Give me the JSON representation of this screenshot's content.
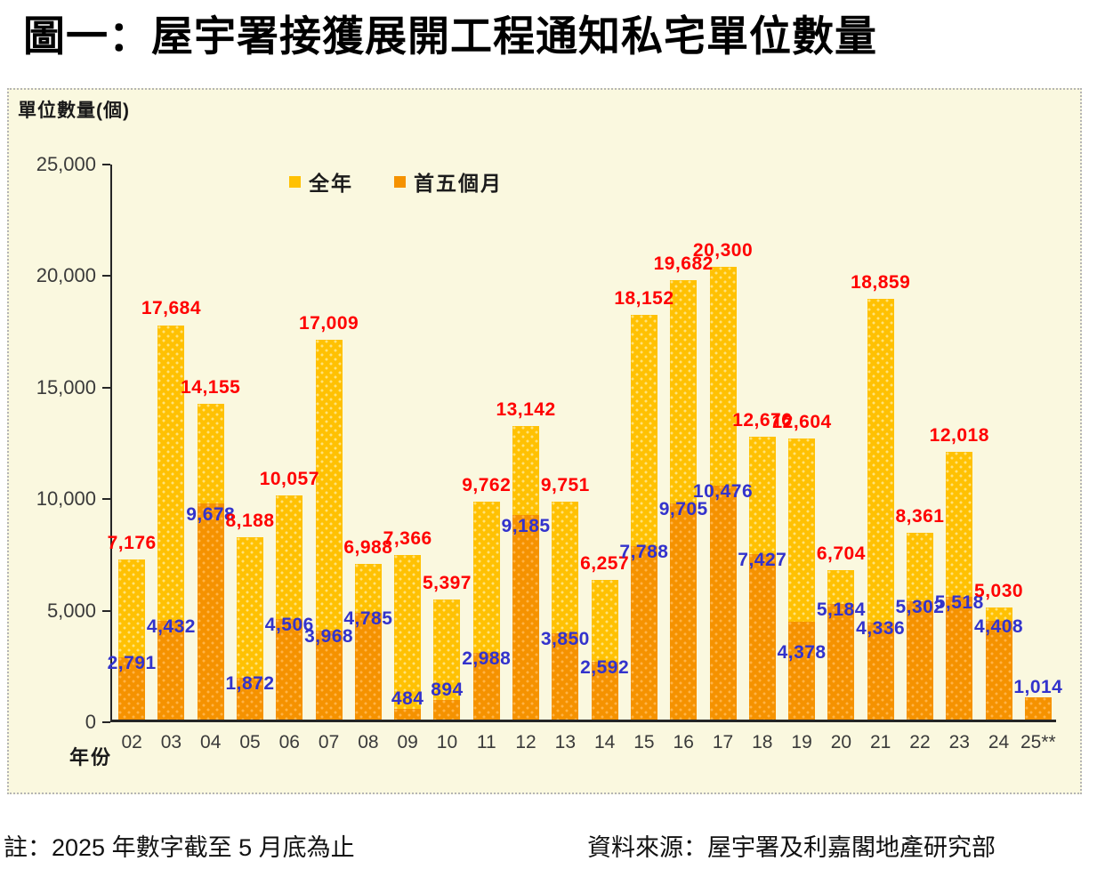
{
  "page_title": "圖一：屋宇署接獲展開工程通知私宅單位數量",
  "chart": {
    "y_axis_title": "單位數量(個)",
    "x_axis_title": "年份",
    "footer_note": "註：2025 年數字截至 5 月底為止",
    "footer_source": "資料來源：屋宇署及利嘉閣地產研究部"
  },
  "chart_data": {
    "type": "bar",
    "title": "圖一：屋宇署接獲展開工程通知私宅單位數量",
    "categories": [
      "02",
      "03",
      "04",
      "05",
      "06",
      "07",
      "08",
      "09",
      "10",
      "11",
      "12",
      "13",
      "14",
      "15",
      "16",
      "17",
      "18",
      "19",
      "20",
      "21",
      "22",
      "23",
      "24",
      "25**"
    ],
    "series": [
      {
        "name": "全年",
        "color": "#ffc103",
        "label_color": "#ff0000",
        "values": [
          7176,
          17684,
          14155,
          8188,
          10057,
          17009,
          6988,
          7366,
          5397,
          9762,
          13142,
          9751,
          6257,
          18152,
          19682,
          20300,
          12676,
          12604,
          6704,
          18859,
          8361,
          12018,
          5030,
          null
        ]
      },
      {
        "name": "首五個月",
        "color": "#f59200",
        "label_color": "#3333cc",
        "values": [
          2791,
          4432,
          9678,
          1872,
          4506,
          3968,
          4785,
          484,
          894,
          2988,
          9185,
          3850,
          2592,
          7788,
          9705,
          10476,
          7427,
          4378,
          5184,
          4336,
          5302,
          5518,
          4408,
          1014
        ]
      }
    ],
    "ylim": [
      0,
      25000
    ],
    "ytick_interval": 5000,
    "ytick_labels": [
      "0",
      "5,000",
      "10,000",
      "15,000",
      "20,000",
      "25,000"
    ],
    "grid": false,
    "legend_position": "top-center",
    "legend": [
      {
        "label": "全年",
        "color": "#ffc103"
      },
      {
        "label": "首五個月",
        "color": "#f59200"
      }
    ]
  }
}
